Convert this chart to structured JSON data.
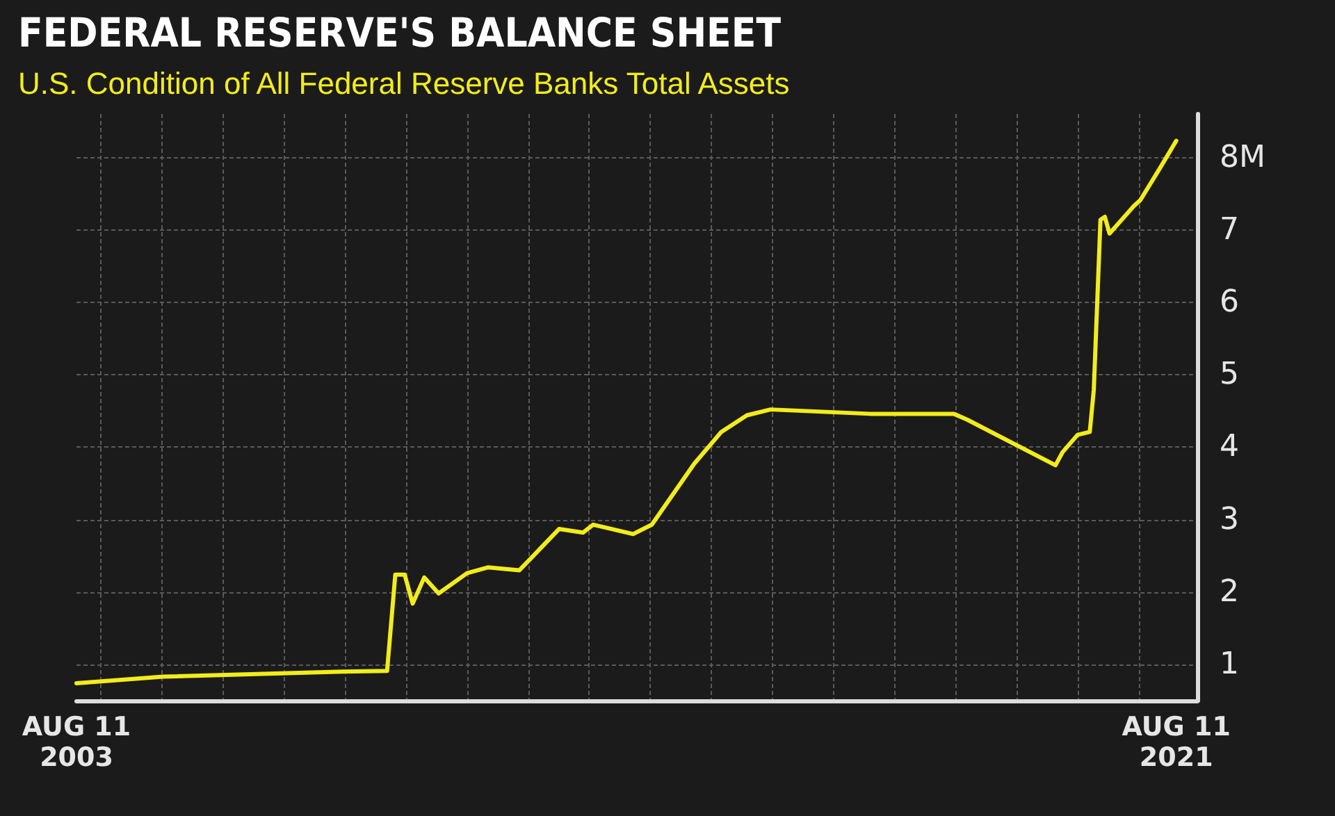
{
  "chart_data": {
    "type": "line",
    "title": "FEDERAL RESERVE'S BALANCE SHEET",
    "subtitle": "U.S. Condition of All Federal Reserve Banks Total Assets",
    "x": [
      "2003-08-11",
      "2005-01-10",
      "2007-12-20",
      "2008-09-10",
      "2008-10-29",
      "2008-12-24",
      "2009-02-10",
      "2009-04-20",
      "2009-07-15",
      "2010-01-01",
      "2010-05-05",
      "2010-11-10",
      "2011-07-05",
      "2011-11-25",
      "2012-01-25",
      "2012-09-20",
      "2013-01-10",
      "2013-09-20",
      "2014-03-01",
      "2014-08-01",
      "2014-12-20",
      "2016-08-05",
      "2017-12-20",
      "2018-03-10",
      "2019-08-20",
      "2019-10-01",
      "2019-12-30",
      "2020-03-12",
      "2020-04-05",
      "2020-05-15",
      "2020-06-10",
      "2020-07-08",
      "2020-12-01",
      "2021-01-08",
      "2021-05-05",
      "2021-08-11"
    ],
    "series": [
      {
        "color": "#f2ec1b",
        "values": [
          0.74,
          0.83,
          0.9,
          0.91,
          2.24,
          2.24,
          1.84,
          2.2,
          1.98,
          2.26,
          2.34,
          2.3,
          2.87,
          2.82,
          2.93,
          2.8,
          2.93,
          3.77,
          4.21,
          4.44,
          4.52,
          4.46,
          4.46,
          4.38,
          3.75,
          3.93,
          4.17,
          4.21,
          4.79,
          7.14,
          7.18,
          6.95,
          7.33,
          7.41,
          7.85,
          8.23
        ]
      }
    ],
    "xlim": [
      "2003-08-11",
      "2021-12-15"
    ],
    "xticks": [
      {
        "value": "2003-08-11",
        "label": "AUG 11\n2003"
      },
      {
        "value": "2004-01-01",
        "label": null
      },
      {
        "value": "2005-01-01",
        "label": null
      },
      {
        "value": "2006-01-01",
        "label": null
      },
      {
        "value": "2007-01-01",
        "label": null
      },
      {
        "value": "2008-01-01",
        "label": null
      },
      {
        "value": "2009-01-01",
        "label": null
      },
      {
        "value": "2010-01-01",
        "label": null
      },
      {
        "value": "2011-01-01",
        "label": null
      },
      {
        "value": "2012-01-01",
        "label": null
      },
      {
        "value": "2013-01-01",
        "label": null
      },
      {
        "value": "2014-01-01",
        "label": null
      },
      {
        "value": "2015-01-01",
        "label": null
      },
      {
        "value": "2016-01-01",
        "label": null
      },
      {
        "value": "2017-01-01",
        "label": null
      },
      {
        "value": "2018-01-01",
        "label": null
      },
      {
        "value": "2019-01-01",
        "label": null
      },
      {
        "value": "2020-01-01",
        "label": null
      },
      {
        "value": "2021-01-01",
        "label": null
      },
      {
        "value": "2021-08-11",
        "label": "AUG 11\n2021"
      }
    ],
    "ylim": [
      0.5,
      8.6
    ],
    "yticks": [
      1,
      2,
      3,
      4,
      5,
      6,
      7,
      {
        "value": 8,
        "label": "8M"
      }
    ],
    "grid": true,
    "marker": "none",
    "line_style": "solid"
  }
}
